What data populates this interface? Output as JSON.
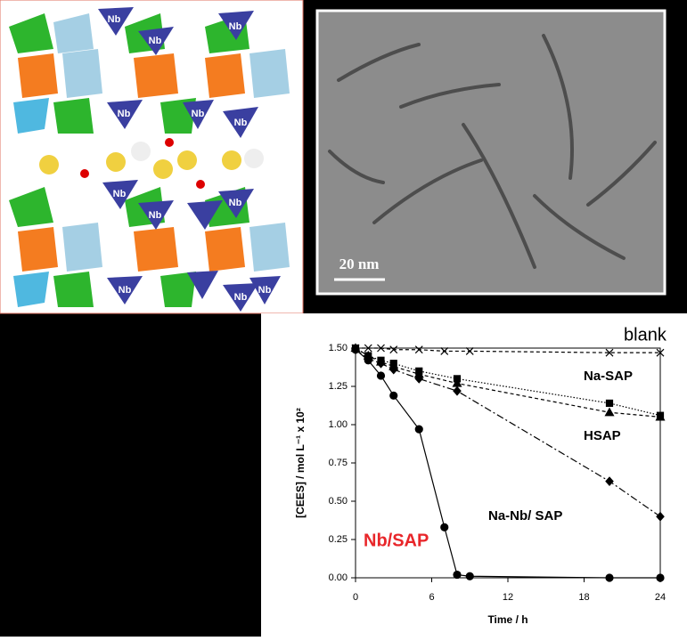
{
  "structure_labels": [
    "Nb",
    "Nb",
    "Nb",
    "Nb",
    "Nb",
    "Nb",
    "Nb",
    "Nb",
    "Nb",
    "Nb",
    "Nb",
    "Nb"
  ],
  "tem": {
    "scale_bar": "20 nm"
  },
  "chart_data": {
    "type": "line",
    "xlabel": "Time / h",
    "ylabel": "[CEES] / mol L⁻¹ x 10²",
    "xlim": [
      0,
      24
    ],
    "xticks": [
      0,
      6,
      12,
      18,
      24
    ],
    "ylim": [
      0,
      1.5
    ],
    "yticks": [
      {
        "value": 0,
        "label": "0.00"
      },
      {
        "value": 0.25,
        "label": "0.25"
      },
      {
        "value": 0.5,
        "label": "0.50"
      },
      {
        "value": 0.75,
        "label": "0.75"
      },
      {
        "value": 1,
        "label": "1.00"
      },
      {
        "value": 1.25,
        "label": "1.25"
      },
      {
        "value": 1.5,
        "label": "1.50"
      }
    ],
    "series": [
      {
        "name": "blank",
        "color": "#000000",
        "marker": "x",
        "line_style": "dashed",
        "x": [
          0,
          1,
          2,
          3,
          5,
          7,
          9,
          20,
          24
        ],
        "values": [
          1.5,
          1.5,
          1.5,
          1.49,
          1.49,
          1.48,
          1.48,
          1.47,
          1.47
        ]
      },
      {
        "name": "Na-SAP",
        "color": "#000000",
        "marker": "square",
        "line_style": "dotted",
        "x": [
          0,
          1,
          2,
          3,
          5,
          8,
          20,
          24
        ],
        "values": [
          1.5,
          1.45,
          1.42,
          1.4,
          1.35,
          1.3,
          1.14,
          1.06
        ]
      },
      {
        "name": "HSAP",
        "color": "#000000",
        "marker": "triangle",
        "line_style": "dashed",
        "x": [
          0,
          1,
          2,
          3,
          5,
          8,
          20,
          24
        ],
        "values": [
          1.5,
          1.45,
          1.41,
          1.38,
          1.33,
          1.27,
          1.08,
          1.05
        ]
      },
      {
        "name": "Na-Nb/ SAP",
        "color": "#000000",
        "marker": "diamond",
        "line_style": "dashdot",
        "x": [
          0,
          1,
          2,
          3,
          5,
          8,
          20,
          24
        ],
        "values": [
          1.49,
          1.43,
          1.4,
          1.36,
          1.3,
          1.22,
          0.63,
          0.4
        ]
      },
      {
        "name": "Nb/SAP",
        "color": "#000000",
        "label_color": "#e8262a",
        "marker": "circle",
        "line_style": "solid",
        "x": [
          0,
          1,
          2,
          3,
          5,
          7,
          8,
          9,
          20,
          24
        ],
        "values": [
          1.49,
          1.42,
          1.32,
          1.19,
          0.97,
          0.33,
          0.02,
          0.01,
          0,
          0
        ]
      }
    ]
  }
}
